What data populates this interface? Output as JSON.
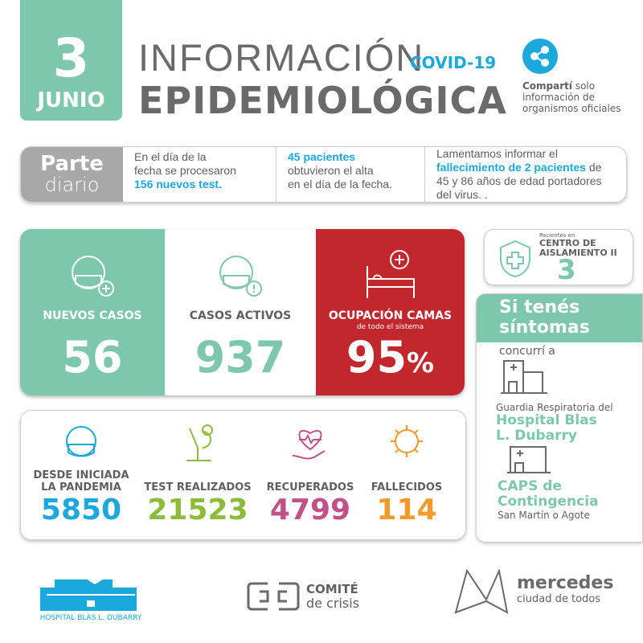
{
  "date": {
    "day": "3",
    "month": "JUNIO"
  },
  "header": {
    "line1": "INFORMACIÓN",
    "tag": "COVID-19",
    "line2": "EPIDEMIOLÓGICA",
    "share_bold": "Compartí",
    "share_rest": " solo",
    "share_line2": "información de",
    "share_line3": "organismos oficiales"
  },
  "parte": {
    "label_bold": "Parte",
    "label_light": "diario",
    "col1_a": "En el día de la",
    "col1_b": "fecha se procesaron",
    "col1_hl": "156 nuevos test.",
    "col2_hl": "45 pacientes",
    "col2_a": "obtuvieron el alta",
    "col2_b": "en el día de la fecha.",
    "col3_a": "Lamentamos informar el",
    "col3_hl": "fallecimiento de 2 pacientes",
    "col3_b": " de",
    "col3_c": "45 y 86 años de edad portadores",
    "col3_d": "del virus. ."
  },
  "main": {
    "nuevos_label": "NUEVOS  CASOS",
    "nuevos": "56",
    "activos_label": "CASOS ACTIVOS",
    "activos": "937",
    "camas_label": "OCUPACIÓN CAMAS",
    "camas_sub": "de todo el sistema",
    "camas": "95",
    "camas_unit": "%"
  },
  "stats": [
    {
      "label": "DESDE INICIADA LA PANDEMIA",
      "value": "5850",
      "color": "#1ba8dd"
    },
    {
      "label": "TEST REALIZADOS",
      "value": "21523",
      "color": "#8dbb3a"
    },
    {
      "label": "RECUPERADOS",
      "value": "4799",
      "color": "#c4508a"
    },
    {
      "label": "FALLECIDOS",
      "value": "114",
      "color": "#f39a2b"
    }
  ],
  "centro": {
    "pre": "Pacientes en",
    "l1": "CENTRO DE",
    "l2": "AISLAMIENTO II",
    "value": "3"
  },
  "sintomas": {
    "h1": "Si tenés",
    "h2": "síntomas",
    "concurri": "concurrí a",
    "guardia": "Guardia Respiratoria del",
    "hosp1": "Hospital Blas",
    "hosp2": "L. Dubarry",
    "caps1": "CAPS de",
    "caps2": "Contingencia",
    "caps_addr": "San Martín o Agote"
  },
  "footer": {
    "hospital": "HOSPITAL BLAS L. DUBARRY",
    "comite1": "COMITÉ",
    "comite2": "de crisis",
    "merc1": "mercedes",
    "merc2": "ciudad de todos"
  },
  "colors": {
    "teal": "#7dc8ad",
    "red": "#c1272d",
    "blue": "#1ba8dd",
    "gray": "#a8a8a8"
  }
}
